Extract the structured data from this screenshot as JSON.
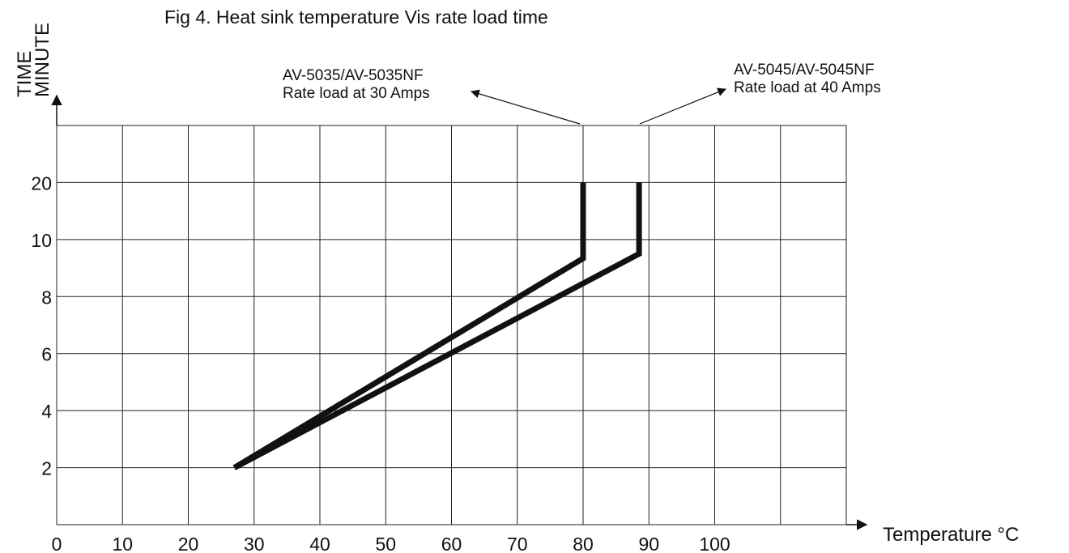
{
  "chart_data": {
    "type": "line",
    "title": "Fig 4. Heat sink temperature Vis rate load time",
    "xlabel": "Temperature °C",
    "ylabel": [
      "TIME",
      "MINUTE"
    ],
    "x_ticks": [
      "0",
      "10",
      "20",
      "30",
      "40",
      "50",
      "60",
      "70",
      "80",
      "90",
      "100"
    ],
    "y_ticks": [
      {
        "label": "2",
        "row": 1
      },
      {
        "label": "4",
        "row": 2
      },
      {
        "label": "6",
        "row": 3
      },
      {
        "label": "8",
        "row": 4
      },
      {
        "label": "10",
        "row": 5
      },
      {
        "label": "20",
        "row": 6
      }
    ],
    "x_cells": 12,
    "y_rows": 6,
    "grid": true,
    "series": [
      {
        "points": [
          {
            "x": 27,
            "row": 1
          },
          {
            "x": 80,
            "row": 4.67
          },
          {
            "x": 80,
            "row": 6
          }
        ],
        "annotation": [
          "AV-5035/AV-5035NF",
          "Rate load at 30 Amps"
        ]
      },
      {
        "points": [
          {
            "x": 27,
            "row": 1
          },
          {
            "x": 88.5,
            "row": 4.75
          },
          {
            "x": 88.5,
            "row": 6
          }
        ],
        "annotation": [
          "AV-5045/AV-5045NF",
          "Rate load at 40 Amps"
        ]
      }
    ]
  }
}
